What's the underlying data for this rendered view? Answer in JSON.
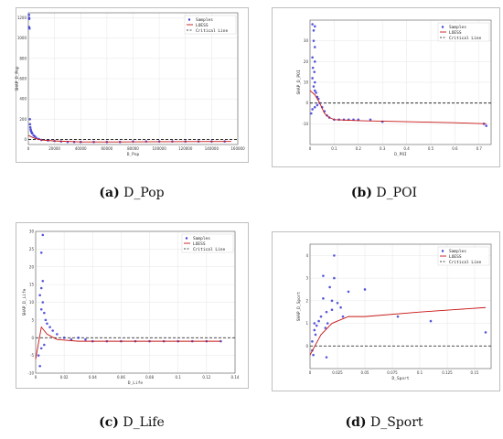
{
  "colors": {
    "points": "#3a3ad6",
    "loess": "#c81414",
    "critical": "#111111",
    "grid": "#e6e6e6"
  },
  "chart_data": [
    {
      "id": "a",
      "type": "scatter",
      "caption_letter": "(a)",
      "caption_text": " D_Pop",
      "xlabel": "D_Pop",
      "ylabel": "SHAP_D_Pop",
      "xlim": [
        0,
        160000
      ],
      "ylim": [
        -50,
        1250
      ],
      "xticks": [
        0,
        20000,
        40000,
        60000,
        80000,
        100000,
        120000,
        140000,
        160000
      ],
      "yticks": [
        0,
        200,
        400,
        600,
        800,
        1000,
        1200
      ],
      "legend": [
        "Samples",
        "LOESS",
        "Critical Line"
      ],
      "critical_y": 0,
      "points": [
        [
          500,
          1230
        ],
        [
          600,
          1200
        ],
        [
          700,
          1190
        ],
        [
          600,
          1110
        ],
        [
          900,
          1095
        ],
        [
          1200,
          200
        ],
        [
          1300,
          150
        ],
        [
          1500,
          120
        ],
        [
          1800,
          100
        ],
        [
          2000,
          85
        ],
        [
          2500,
          70
        ],
        [
          3000,
          60
        ],
        [
          4000,
          40
        ],
        [
          5000,
          30
        ],
        [
          6000,
          15
        ],
        [
          8000,
          5
        ],
        [
          10000,
          -5
        ],
        [
          15000,
          -10
        ],
        [
          20000,
          -15
        ],
        [
          25000,
          -20
        ],
        [
          30000,
          -25
        ],
        [
          35000,
          -25
        ],
        [
          40000,
          -25
        ],
        [
          50000,
          -25
        ],
        [
          60000,
          -25
        ],
        [
          70000,
          -25
        ],
        [
          80000,
          -20
        ],
        [
          90000,
          -20
        ],
        [
          100000,
          -20
        ],
        [
          110000,
          -20
        ],
        [
          120000,
          -20
        ],
        [
          130000,
          -20
        ],
        [
          140000,
          -20
        ],
        [
          150000,
          -20
        ]
      ],
      "loess": [
        [
          0,
          40
        ],
        [
          5000,
          10
        ],
        [
          10000,
          -5
        ],
        [
          20000,
          -15
        ],
        [
          40000,
          -25
        ],
        [
          60000,
          -25
        ],
        [
          100000,
          -22
        ],
        [
          150000,
          -20
        ],
        [
          155000,
          -20
        ]
      ]
    },
    {
      "id": "b",
      "type": "scatter",
      "caption_letter": "(b)",
      "caption_text": " D_POI",
      "xlabel": "D_POI",
      "ylabel": "SHAP_D_POI",
      "xlim": [
        0,
        0.75
      ],
      "ylim": [
        -20,
        40
      ],
      "xticks": [
        0.0,
        0.1,
        0.2,
        0.3,
        0.4,
        0.5,
        0.6,
        0.7
      ],
      "yticks": [
        -10,
        0,
        10,
        20,
        30
      ],
      "legend": [
        "Samples",
        "LOESS",
        "Critical Line"
      ],
      "critical_y": 0,
      "points": [
        [
          0.01,
          38
        ],
        [
          0.015,
          35
        ],
        [
          0.02,
          37
        ],
        [
          0.015,
          30
        ],
        [
          0.02,
          27
        ],
        [
          0.01,
          22
        ],
        [
          0.02,
          20
        ],
        [
          0.012,
          17
        ],
        [
          0.018,
          15
        ],
        [
          0.01,
          12
        ],
        [
          0.02,
          10
        ],
        [
          0.015,
          8
        ],
        [
          0.02,
          6
        ],
        [
          0.025,
          5
        ],
        [
          0.03,
          3
        ],
        [
          0.035,
          2
        ],
        [
          0.04,
          0
        ],
        [
          0.05,
          -2
        ],
        [
          0.06,
          -4
        ],
        [
          0.07,
          -6
        ],
        [
          0.08,
          -7
        ],
        [
          0.1,
          -8
        ],
        [
          0.12,
          -8
        ],
        [
          0.14,
          -8
        ],
        [
          0.16,
          -8
        ],
        [
          0.18,
          -8
        ],
        [
          0.2,
          -8
        ],
        [
          0.25,
          -8
        ],
        [
          0.3,
          -9
        ],
        [
          0.005,
          -5
        ],
        [
          0.01,
          -3
        ],
        [
          0.02,
          -2
        ],
        [
          0.03,
          -1
        ],
        [
          0.72,
          -10
        ],
        [
          0.73,
          -11
        ]
      ],
      "loess": [
        [
          0.0,
          6
        ],
        [
          0.02,
          4
        ],
        [
          0.04,
          0
        ],
        [
          0.06,
          -5
        ],
        [
          0.08,
          -7
        ],
        [
          0.1,
          -8
        ],
        [
          0.2,
          -8.5
        ],
        [
          0.4,
          -9
        ],
        [
          0.6,
          -9.5
        ],
        [
          0.73,
          -10
        ]
      ]
    },
    {
      "id": "c",
      "type": "scatter",
      "caption_letter": "(c)",
      "caption_text": " D_Life",
      "xlabel": "D_Life",
      "ylabel": "SHAP_D_Life",
      "xlim": [
        0,
        0.14
      ],
      "ylim": [
        -10,
        30
      ],
      "xticks": [
        0.0,
        0.02,
        0.04,
        0.06,
        0.08,
        0.1,
        0.12,
        0.14
      ],
      "yticks": [
        -10,
        -5,
        0,
        5,
        10,
        15,
        20,
        25,
        30
      ],
      "legend": [
        "Samples",
        "LOESS",
        "Critical Line"
      ],
      "critical_y": 0,
      "points": [
        [
          0.005,
          29
        ],
        [
          0.004,
          24
        ],
        [
          0.005,
          16
        ],
        [
          0.004,
          14
        ],
        [
          0.003,
          12
        ],
        [
          0.005,
          10
        ],
        [
          0.004,
          8
        ],
        [
          0.006,
          7
        ],
        [
          0.007,
          5
        ],
        [
          0.008,
          4
        ],
        [
          0.01,
          3
        ],
        [
          0.012,
          2
        ],
        [
          0.015,
          1
        ],
        [
          0.02,
          0
        ],
        [
          0.025,
          -0.5
        ],
        [
          0.03,
          0
        ],
        [
          0.035,
          -0.5
        ],
        [
          0.04,
          -1
        ],
        [
          0.05,
          -1
        ],
        [
          0.06,
          -1
        ],
        [
          0.07,
          -1
        ],
        [
          0.08,
          -1
        ],
        [
          0.09,
          -1
        ],
        [
          0.1,
          -1
        ],
        [
          0.11,
          -1
        ],
        [
          0.12,
          -1
        ],
        [
          0.13,
          -1
        ],
        [
          0.002,
          -5
        ],
        [
          0.003,
          -8
        ],
        [
          0.004,
          -3
        ],
        [
          0.006,
          -2
        ]
      ],
      "loess": [
        [
          0.0,
          -6
        ],
        [
          0.004,
          3
        ],
        [
          0.008,
          1
        ],
        [
          0.015,
          -0.5
        ],
        [
          0.03,
          -1
        ],
        [
          0.06,
          -1
        ],
        [
          0.1,
          -1
        ],
        [
          0.13,
          -1
        ]
      ]
    },
    {
      "id": "d",
      "type": "scatter",
      "caption_letter": "(d)",
      "caption_text": " D_Sport",
      "xlabel": "D_Sport",
      "ylabel": "SHAP_D_Sport",
      "xlim": [
        0,
        0.165
      ],
      "ylim": [
        -1,
        4.5
      ],
      "xticks": [
        0.0,
        0.025,
        0.05,
        0.075,
        0.1,
        0.125,
        0.15
      ],
      "yticks": [
        0,
        1,
        2,
        3,
        4
      ],
      "legend": [
        "Samples",
        "LOESS",
        "Critical Line"
      ],
      "critical_y": 0,
      "points": [
        [
          0.022,
          4.0
        ],
        [
          0.012,
          3.1
        ],
        [
          0.022,
          3.0
        ],
        [
          0.018,
          2.6
        ],
        [
          0.035,
          2.4
        ],
        [
          0.05,
          2.5
        ],
        [
          0.012,
          2.1
        ],
        [
          0.02,
          2.0
        ],
        [
          0.025,
          1.9
        ],
        [
          0.028,
          1.7
        ],
        [
          0.02,
          1.6
        ],
        [
          0.015,
          1.5
        ],
        [
          0.01,
          1.3
        ],
        [
          0.008,
          1.1
        ],
        [
          0.006,
          0.9
        ],
        [
          0.004,
          0.7
        ],
        [
          0.005,
          0.5
        ],
        [
          0.002,
          0.2
        ],
        [
          0.002,
          -0.2
        ],
        [
          0.003,
          -0.4
        ],
        [
          0.015,
          -0.5
        ],
        [
          0.004,
          1.0
        ],
        [
          0.08,
          1.3
        ],
        [
          0.11,
          1.1
        ],
        [
          0.16,
          0.6
        ],
        [
          0.014,
          0.8
        ],
        [
          0.03,
          1.3
        ],
        [
          0.016,
          1.0
        ]
      ],
      "loess": [
        [
          0.0,
          -0.4
        ],
        [
          0.01,
          0.5
        ],
        [
          0.02,
          1.0
        ],
        [
          0.03,
          1.2
        ],
        [
          0.035,
          1.3
        ],
        [
          0.05,
          1.3
        ],
        [
          0.1,
          1.5
        ],
        [
          0.13,
          1.6
        ],
        [
          0.16,
          1.7
        ]
      ]
    }
  ]
}
